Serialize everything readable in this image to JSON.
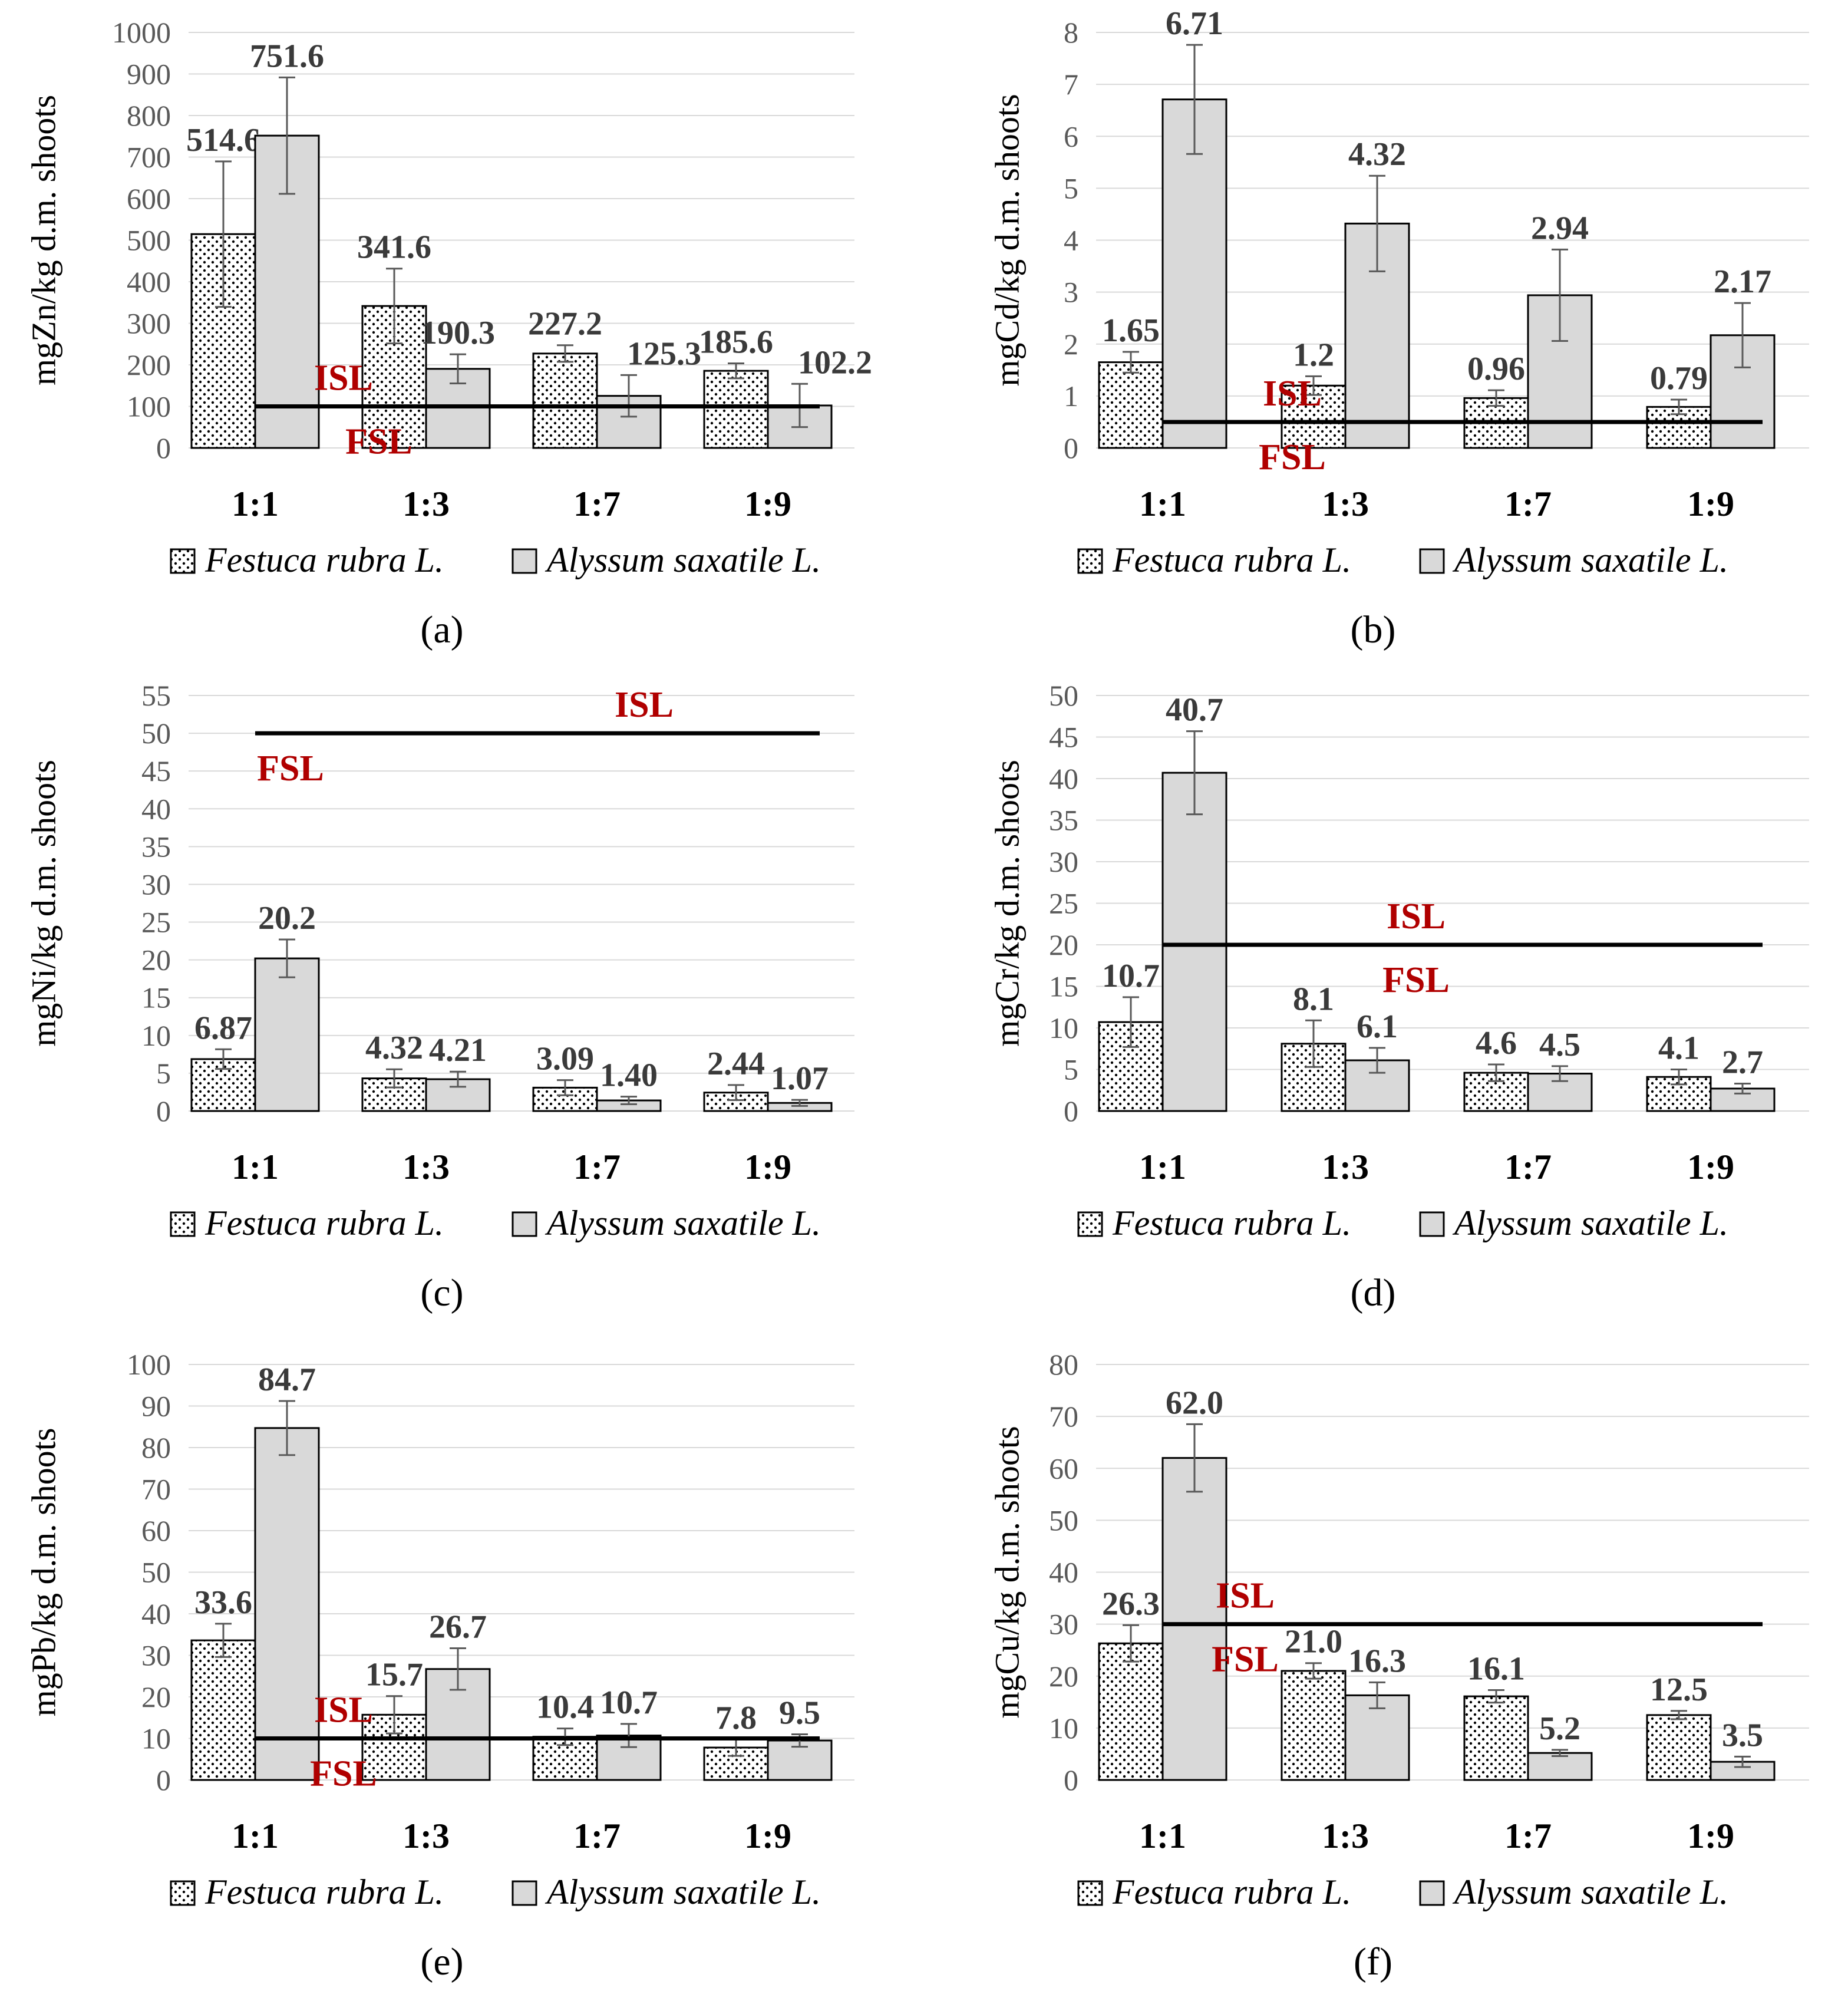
{
  "legend": {
    "series": [
      "Festuca rubra L.",
      "Alyssum saxatile L."
    ]
  },
  "threshold_labels": {
    "upper": "ISL",
    "lower": "FSL"
  },
  "colors": {
    "alyssum_fill": "#d9d9d9",
    "festuca_fill": "#ffffff",
    "dots": "#000000",
    "threshold_label": "#b00000",
    "data_label": "#3a3a3a",
    "grid": "#d9d9d9",
    "axis_text": "#595959",
    "error_bar": "#595959"
  },
  "chart_data": [
    {
      "type": "bar",
      "panel": "(a)",
      "ylabel": "mgZn/kg d.m. shoots",
      "categories": [
        "1:1",
        "1:3",
        "1:7",
        "1:9"
      ],
      "ylim": [
        0,
        1000
      ],
      "ytick_step": 100,
      "yticks": [
        "0",
        "100",
        "200",
        "300",
        "400",
        "500",
        "600",
        "700",
        "800",
        "900",
        "1000"
      ],
      "series": [
        {
          "name": "Festuca rubra L.",
          "values": [
            514.6,
            341.6,
            227.2,
            185.6
          ],
          "errors": [
            175,
            90,
            20,
            18
          ],
          "labels": [
            "514.6",
            "341.6",
            "227.2",
            "185.6"
          ]
        },
        {
          "name": "Alyssum saxatile L.",
          "values": [
            751.6,
            190.3,
            125.3,
            102.2
          ],
          "errors": [
            140,
            35,
            50,
            52
          ],
          "labels": [
            "751.6",
            "190.3",
            "125.3",
            "102.2"
          ]
        }
      ],
      "threshold": {
        "value": 100,
        "from": "1:1",
        "to": "1:9"
      }
    },
    {
      "type": "bar",
      "panel": "(b)",
      "ylabel": "mgCd/kg d.m. shoots",
      "categories": [
        "1:1",
        "1:3",
        "1:7",
        "1:9"
      ],
      "ylim": [
        0,
        8
      ],
      "ytick_step": 1,
      "yticks": [
        "0",
        "1",
        "2",
        "3",
        "4",
        "5",
        "6",
        "7",
        "8"
      ],
      "series": [
        {
          "name": "Festuca rubra L.",
          "values": [
            1.65,
            1.2,
            0.96,
            0.79
          ],
          "errors": [
            0.2,
            0.18,
            0.15,
            0.14
          ],
          "labels": [
            "1.65",
            "1.2",
            "0.96",
            "0.79"
          ]
        },
        {
          "name": "Alyssum saxatile L.",
          "values": [
            6.71,
            4.32,
            2.94,
            2.17
          ],
          "errors": [
            1.05,
            0.92,
            0.88,
            0.62
          ],
          "labels": [
            "6.71",
            "4.32",
            "2.94",
            "2.17"
          ]
        }
      ],
      "threshold": {
        "value": 0.5,
        "from": "1:1",
        "to": "1:9"
      }
    },
    {
      "type": "bar",
      "panel": "(c)",
      "ylabel": "mgNi/kg d.m. shoots",
      "categories": [
        "1:1",
        "1:3",
        "1:7",
        "1:9"
      ],
      "ylim": [
        0,
        55
      ],
      "ytick_step": 5,
      "yticks": [
        "0",
        "5",
        "10",
        "15",
        "20",
        "25",
        "30",
        "35",
        "40",
        "45",
        "50",
        "55"
      ],
      "series": [
        {
          "name": "Festuca rubra L.",
          "values": [
            6.87,
            4.32,
            3.09,
            2.44
          ],
          "errors": [
            1.3,
            1.2,
            1.0,
            1.0
          ],
          "labels": [
            "6.87",
            "4.32",
            "3.09",
            "2.44"
          ]
        },
        {
          "name": "Alyssum saxatile L.",
          "values": [
            20.2,
            4.21,
            1.4,
            1.07
          ],
          "errors": [
            2.5,
            1.0,
            0.5,
            0.4
          ],
          "labels": [
            "20.2",
            "4.21",
            "1.40",
            "1.07"
          ]
        }
      ],
      "threshold": {
        "value": 50,
        "from": "1:1",
        "to": "1:9"
      }
    },
    {
      "type": "bar",
      "panel": "(d)",
      "ylabel": "mgCr/kg d.m. shoots",
      "categories": [
        "1:1",
        "1:3",
        "1:7",
        "1:9"
      ],
      "ylim": [
        0,
        50
      ],
      "ytick_step": 5,
      "yticks": [
        "0",
        "5",
        "10",
        "15",
        "20",
        "25",
        "30",
        "35",
        "40",
        "45",
        "50"
      ],
      "series": [
        {
          "name": "Festuca rubra L.",
          "values": [
            10.7,
            8.1,
            4.6,
            4.1
          ],
          "errors": [
            3.0,
            2.8,
            1.0,
            0.9
          ],
          "labels": [
            "10.7",
            "8.1",
            "4.6",
            "4.1"
          ]
        },
        {
          "name": "Alyssum saxatile L.",
          "values": [
            40.7,
            6.1,
            4.5,
            2.7
          ],
          "errors": [
            5.0,
            1.5,
            0.9,
            0.6
          ],
          "labels": [
            "40.7",
            "6.1",
            "4.5",
            "2.7"
          ]
        }
      ],
      "threshold": {
        "value": 20,
        "from": "1:1",
        "to": "1:9"
      }
    },
    {
      "type": "bar",
      "panel": "(e)",
      "ylabel": "mgPb/kg d.m. shoots",
      "categories": [
        "1:1",
        "1:3",
        "1:7",
        "1:9"
      ],
      "ylim": [
        0,
        100
      ],
      "ytick_step": 10,
      "yticks": [
        "0",
        "10",
        "20",
        "30",
        "40",
        "50",
        "60",
        "70",
        "80",
        "90",
        "100"
      ],
      "series": [
        {
          "name": "Festuca rubra L.",
          "values": [
            33.6,
            15.7,
            10.4,
            7.8
          ],
          "errors": [
            4.0,
            4.5,
            2.0,
            2.0
          ],
          "labels": [
            "33.6",
            "15.7",
            "10.4",
            "7.8"
          ]
        },
        {
          "name": "Alyssum saxatile L.",
          "values": [
            84.7,
            26.7,
            10.7,
            9.5
          ],
          "errors": [
            6.5,
            5.0,
            2.8,
            1.5
          ],
          "labels": [
            "84.7",
            "26.7",
            "10.7",
            "9.5"
          ]
        }
      ],
      "threshold": {
        "value": 10,
        "from": "1:1",
        "to": "1:9"
      }
    },
    {
      "type": "bar",
      "panel": "(f)",
      "ylabel": "mgCu/kg d.m. shoots",
      "categories": [
        "1:1",
        "1:3",
        "1:7",
        "1:9"
      ],
      "ylim": [
        0,
        80
      ],
      "ytick_step": 10,
      "yticks": [
        "0",
        "10",
        "20",
        "30",
        "40",
        "50",
        "60",
        "70",
        "80"
      ],
      "series": [
        {
          "name": "Festuca rubra L.",
          "values": [
            26.3,
            21.0,
            16.1,
            12.5
          ],
          "errors": [
            3.5,
            1.5,
            1.2,
            0.8
          ],
          "labels": [
            "26.3",
            "21.0",
            "16.1",
            "12.5"
          ]
        },
        {
          "name": "Alyssum saxatile L.",
          "values": [
            62.0,
            16.3,
            5.2,
            3.5
          ],
          "errors": [
            6.5,
            2.5,
            0.6,
            1.0
          ],
          "labels": [
            "62.0",
            "16.3",
            "5.2",
            "3.5"
          ]
        }
      ],
      "threshold": {
        "value": 30,
        "from": "1:1",
        "to": "1:9"
      }
    }
  ]
}
